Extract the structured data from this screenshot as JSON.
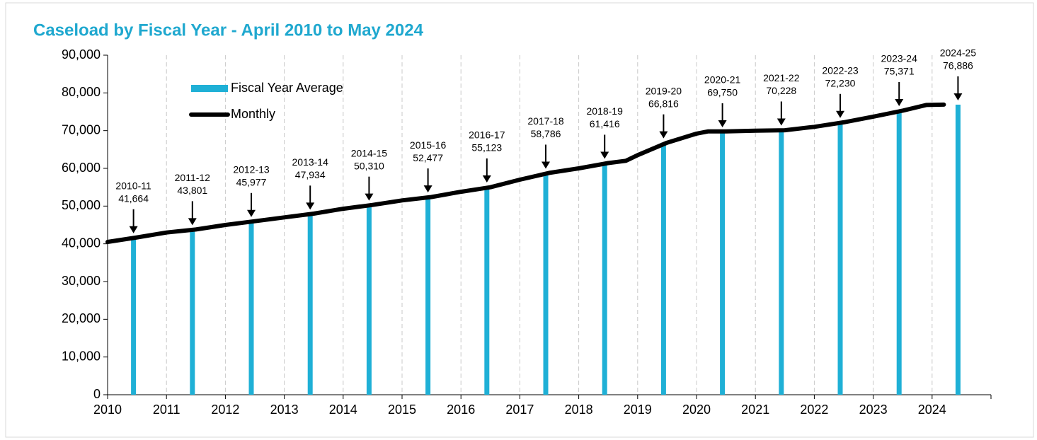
{
  "chart_data": {
    "type": "bar-line",
    "title": "Caseload by Fiscal Year - April 2010 to May 2024",
    "xlim": [
      2010,
      2025
    ],
    "xticks": [
      2010,
      2011,
      2012,
      2013,
      2014,
      2015,
      2016,
      2017,
      2018,
      2019,
      2020,
      2021,
      2022,
      2023,
      2024
    ],
    "ylim": [
      0,
      90000
    ],
    "yticks": [
      0,
      {
        "value": 10000,
        "label": "10,000"
      },
      {
        "value": 20000,
        "label": "20,000"
      },
      {
        "value": 30000,
        "label": "30,000"
      },
      {
        "value": 40000,
        "label": "40,000"
      },
      {
        "value": 50000,
        "label": "50,000"
      },
      {
        "value": 60000,
        "label": "60,000"
      },
      {
        "value": 70000,
        "label": "70,000"
      },
      {
        "value": 80000,
        "label": "80,000"
      },
      {
        "value": 90000,
        "label": "90,000"
      }
    ],
    "grid": true,
    "series": [
      {
        "name": "Fiscal Year Average",
        "type": "bar",
        "color": "#1fb0d6",
        "categories": [
          "2010-11",
          "2011-12",
          "2012-13",
          "2013-14",
          "2014-15",
          "2015-16",
          "2016-17",
          "2017-18",
          "2018-19",
          "2019-20",
          "2020-21",
          "2021-22",
          "2022-23",
          "2023-24",
          "2024-25"
        ],
        "x": [
          2010.44,
          2011.44,
          2012.44,
          2013.44,
          2014.44,
          2015.44,
          2016.44,
          2017.44,
          2018.44,
          2019.44,
          2020.44,
          2021.44,
          2022.44,
          2023.44,
          2024.44
        ],
        "values": [
          41664,
          43801,
          45977,
          47934,
          50310,
          52477,
          55123,
          58786,
          61416,
          66816,
          69750,
          70228,
          72230,
          75371,
          76886
        ],
        "value_labels": [
          "41,664",
          "43,801",
          "45,977",
          "47,934",
          "50,310",
          "52,477",
          "55,123",
          "58,786",
          "61,416",
          "66,816",
          "69,750",
          "70,228",
          "72,230",
          "75,371",
          "76,886"
        ]
      },
      {
        "name": "Monthly",
        "type": "line",
        "color": "#000000",
        "x": [
          2010.0,
          2010.5,
          2011.0,
          2011.5,
          2012.0,
          2012.5,
          2013.0,
          2013.5,
          2014.0,
          2014.5,
          2015.0,
          2015.5,
          2016.0,
          2016.5,
          2017.0,
          2017.5,
          2018.0,
          2018.5,
          2018.8,
          2019.0,
          2019.5,
          2020.0,
          2020.2,
          2020.5,
          2021.0,
          2021.5,
          2022.0,
          2022.5,
          2023.0,
          2023.5,
          2023.9,
          2024.2
        ],
        "values": [
          40500,
          41700,
          43000,
          43800,
          45000,
          46000,
          47000,
          48000,
          49300,
          50300,
          51500,
          52400,
          53800,
          55000,
          57000,
          58800,
          60000,
          61400,
          62000,
          63500,
          66800,
          69200,
          69800,
          69800,
          70000,
          70100,
          71000,
          72200,
          73700,
          75300,
          76800,
          76900
        ]
      }
    ]
  }
}
